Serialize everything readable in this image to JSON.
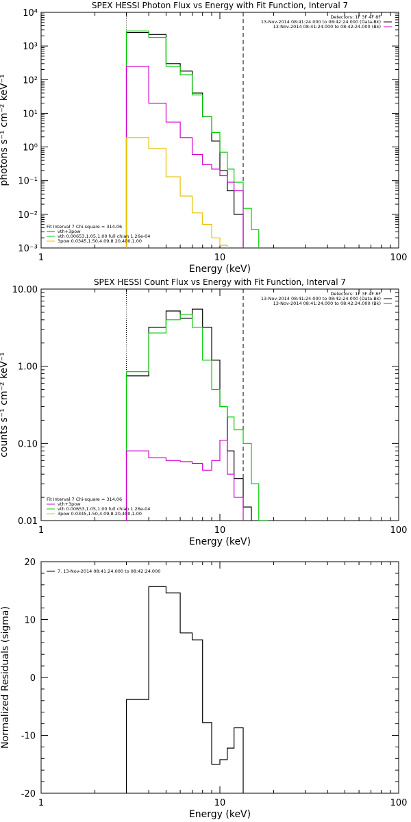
{
  "chart_data": [
    {
      "type": "line",
      "title": "SPEX HESSI Photon Flux vs Energy with Fit Function, Interval 7",
      "xlabel": "Energy (keV)",
      "ylabel": "photons s⁻¹ cm⁻² keV⁻¹",
      "xscale": "log",
      "yscale": "log",
      "xlim": [
        1,
        100
      ],
      "ylim": [
        0.001,
        10000
      ],
      "xtick_labels": [
        "1",
        "10",
        "100"
      ],
      "ytick_labels": [
        "10⁻³",
        "10⁻²",
        "10⁻¹",
        "10⁰",
        "10¹",
        "10²",
        "10³",
        "10⁴"
      ],
      "vlines": [
        {
          "x": 3.0,
          "style": "dotted"
        },
        {
          "x": 13.5,
          "style": "dashed"
        }
      ],
      "legend_top_right": [
        {
          "text": "Detectors: 1F 3F 4F 8F",
          "color": "#000000"
        },
        {
          "text": "13-Nov-2014 08:41:24.000 to 08:42:24.000 (Data-Bk)",
          "color": "#000000"
        },
        {
          "text": "13-Nov-2014 08:41:24.000 to 08:42:24.000 (Bk)",
          "color": "#d000d0"
        }
      ],
      "legend_bottom_left": [
        {
          "text": "Fit Interval 7   Chi-square = 314.06",
          "color": "#000000"
        },
        {
          "text": "vth+3pow",
          "color": "#d000d0"
        },
        {
          "text": "vth 0.00653,1.05,1.00   full chian 1.26e-04",
          "color": "#00cc00"
        },
        {
          "text": "3pow 0.0345,1.50,4.09,8.20,400,1.00",
          "color": "#e8c000"
        }
      ],
      "bin_edges": [
        3,
        4,
        5,
        6,
        7,
        8,
        9,
        10,
        11,
        12,
        13.5,
        15,
        16.5
      ],
      "series": [
        {
          "color": "#000000",
          "values": [
            2500,
            2200,
            300,
            180,
            40,
            8,
            1.5,
            0.2,
            0.05,
            0.01,
            null,
            null
          ]
        },
        {
          "color": "#00cc00",
          "values": [
            2800,
            1800,
            250,
            140,
            35,
            8,
            2.7,
            0.7,
            0.22,
            0.09,
            0.015,
            0.0035
          ]
        },
        {
          "color": "#d000d0",
          "values": [
            250,
            20,
            5.5,
            1.9,
            0.6,
            0.3,
            0.22,
            0.14,
            0.09,
            0.05,
            null,
            null
          ]
        },
        {
          "color": "#e8c000",
          "values": [
            1.9,
            0.9,
            0.13,
            0.035,
            0.011,
            0.005,
            0.002,
            0.0012,
            null,
            null,
            null,
            null
          ]
        }
      ]
    },
    {
      "type": "line",
      "title": "SPEX HESSI Count Flux vs Energy with Fit Function, Interval 7",
      "xlabel": "Energy (keV)",
      "ylabel": "counts s⁻¹ cm⁻² keV⁻¹",
      "xscale": "log",
      "yscale": "log",
      "xlim": [
        1,
        100
      ],
      "ylim": [
        0.01,
        10
      ],
      "xtick_labels": [
        "1",
        "10",
        "100"
      ],
      "ytick_labels": [
        "0.01",
        "0.10",
        "1.00",
        "10.00"
      ],
      "vlines": [
        {
          "x": 3.0,
          "style": "dotted"
        },
        {
          "x": 13.5,
          "style": "dashed"
        }
      ],
      "legend_top_right": [
        {
          "text": "Detectors: 1F 3F 4F 8F",
          "color": "#000000"
        },
        {
          "text": "13-Nov-2014 08:41:24.000 to 08:42:24.000 (Data-Bk)",
          "color": "#000000"
        },
        {
          "text": "13-Nov-2014 08:41:24.000 to 08:42:24.000 (Bk)",
          "color": "#d000d0"
        }
      ],
      "legend_bottom_left": [
        {
          "text": "Fit Interval 7   Chi-square = 314.06",
          "color": "#000000"
        },
        {
          "text": "vth+3pow",
          "color": "#d000d0"
        },
        {
          "text": "vth 0.00653,1.05,1.00   full chian 1.26e-04",
          "color": "#00cc00"
        },
        {
          "text": "3pow 0.0345,1.50,4.09,8.20,400,1.00",
          "color": "#e8c000"
        }
      ],
      "bin_edges": [
        3,
        4,
        5,
        6,
        7,
        8,
        9,
        10,
        11,
        12,
        13.5,
        15,
        16.5,
        18.5
      ],
      "series": [
        {
          "color": "#000000",
          "values": [
            0.75,
            3.2,
            5.2,
            4.2,
            5.5,
            3.2,
            1.2,
            0.3,
            0.08,
            0.035,
            0.015,
            null,
            null
          ]
        },
        {
          "color": "#00cc00",
          "values": [
            0.85,
            2.7,
            4.0,
            4.7,
            3.2,
            1.2,
            0.5,
            0.3,
            0.22,
            0.15,
            0.1,
            0.03,
            0.01
          ]
        },
        {
          "color": "#d000d0",
          "values": [
            0.08,
            0.065,
            0.06,
            0.058,
            0.055,
            0.045,
            0.06,
            0.11,
            0.04,
            0.02,
            null,
            null,
            null
          ]
        }
      ]
    },
    {
      "type": "line",
      "title": "",
      "xlabel": "Energy (keV)",
      "ylabel": "Normalized Residuals (sigma)",
      "xscale": "log",
      "xlim": [
        1,
        100
      ],
      "ylim": [
        -20,
        20
      ],
      "xtick_labels": [
        "1",
        "10",
        "100"
      ],
      "ytick_labels": [
        "-20",
        "-10",
        "0",
        "10",
        "20"
      ],
      "legend_top_left": [
        {
          "text": "7. 13-Nov-2014 08:41:24.000 to 08:42:24.000",
          "color": "#000000"
        }
      ],
      "bin_edges": [
        3,
        4,
        5,
        6,
        7,
        8,
        9,
        10,
        11,
        12,
        13.5
      ],
      "series": [
        {
          "color": "#000000",
          "values": [
            -3.8,
            15.7,
            14.6,
            7.7,
            6.5,
            -7.8,
            -15.0,
            -14.2,
            -12.2,
            -8.7
          ]
        }
      ]
    }
  ]
}
